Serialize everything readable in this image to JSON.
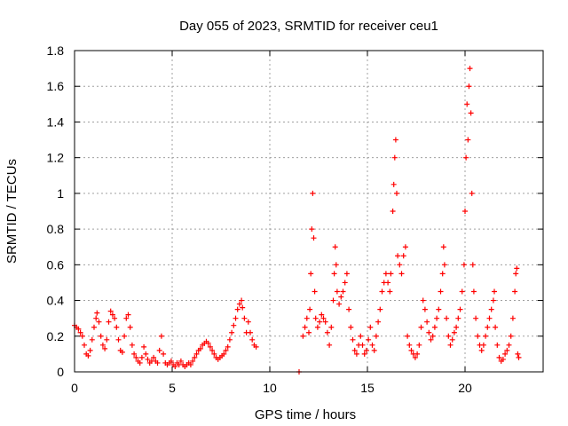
{
  "chart_data": {
    "type": "scatter",
    "title": "Day 055 of 2023, SRMTID for receiver ceu1",
    "xlabel": "GPS time / hours",
    "ylabel": "SRMTID / TECUs",
    "xlim": [
      0,
      24
    ],
    "ylim": [
      0,
      1.8
    ],
    "xticks": [
      0,
      5,
      10,
      15,
      20
    ],
    "xtick_labels": [
      "0",
      "5",
      "10",
      "15",
      "20"
    ],
    "yticks": [
      0,
      0.2,
      0.4,
      0.6,
      0.8,
      1.0,
      1.2,
      1.4,
      1.6,
      1.8
    ],
    "ytick_labels": [
      "0",
      "0.2",
      "0.4",
      "0.6",
      "0.8",
      "1",
      "1.2",
      "1.4",
      "1.6",
      "1.8"
    ],
    "grid": true,
    "marker": "+",
    "color": "#ff0000",
    "series": [
      {
        "name": "SRMTID",
        "points": [
          [
            0.0,
            0.26
          ],
          [
            0.1,
            0.25
          ],
          [
            0.2,
            0.24
          ],
          [
            0.3,
            0.22
          ],
          [
            0.4,
            0.2
          ],
          [
            0.5,
            0.15
          ],
          [
            0.6,
            0.1
          ],
          [
            0.7,
            0.09
          ],
          [
            0.8,
            0.12
          ],
          [
            0.9,
            0.18
          ],
          [
            1.0,
            0.25
          ],
          [
            1.1,
            0.3
          ],
          [
            1.15,
            0.33
          ],
          [
            1.25,
            0.28
          ],
          [
            1.35,
            0.2
          ],
          [
            1.45,
            0.15
          ],
          [
            1.55,
            0.13
          ],
          [
            1.65,
            0.18
          ],
          [
            1.75,
            0.28
          ],
          [
            1.85,
            0.34
          ],
          [
            1.95,
            0.32
          ],
          [
            2.05,
            0.3
          ],
          [
            2.15,
            0.25
          ],
          [
            2.25,
            0.18
          ],
          [
            2.35,
            0.12
          ],
          [
            2.45,
            0.11
          ],
          [
            2.55,
            0.2
          ],
          [
            2.65,
            0.3
          ],
          [
            2.75,
            0.32
          ],
          [
            2.85,
            0.25
          ],
          [
            2.95,
            0.15
          ],
          [
            3.05,
            0.1
          ],
          [
            3.15,
            0.08
          ],
          [
            3.25,
            0.06
          ],
          [
            3.35,
            0.05
          ],
          [
            3.45,
            0.08
          ],
          [
            3.55,
            0.14
          ],
          [
            3.65,
            0.1
          ],
          [
            3.75,
            0.07
          ],
          [
            3.85,
            0.05
          ],
          [
            3.95,
            0.06
          ],
          [
            4.05,
            0.08
          ],
          [
            4.15,
            0.06
          ],
          [
            4.25,
            0.05
          ],
          [
            4.35,
            0.12
          ],
          [
            4.45,
            0.2
          ],
          [
            4.55,
            0.1
          ],
          [
            4.65,
            0.05
          ],
          [
            4.75,
            0.04
          ],
          [
            4.85,
            0.05
          ],
          [
            4.95,
            0.06
          ],
          [
            5.05,
            0.04
          ],
          [
            5.15,
            0.03
          ],
          [
            5.25,
            0.05
          ],
          [
            5.35,
            0.04
          ],
          [
            5.45,
            0.06
          ],
          [
            5.55,
            0.04
          ],
          [
            5.65,
            0.03
          ],
          [
            5.75,
            0.04
          ],
          [
            5.85,
            0.05
          ],
          [
            5.95,
            0.04
          ],
          [
            6.05,
            0.06
          ],
          [
            6.15,
            0.08
          ],
          [
            6.25,
            0.1
          ],
          [
            6.35,
            0.12
          ],
          [
            6.45,
            0.13
          ],
          [
            6.55,
            0.15
          ],
          [
            6.65,
            0.16
          ],
          [
            6.75,
            0.17
          ],
          [
            6.85,
            0.16
          ],
          [
            6.95,
            0.14
          ],
          [
            7.05,
            0.12
          ],
          [
            7.15,
            0.1
          ],
          [
            7.25,
            0.08
          ],
          [
            7.35,
            0.07
          ],
          [
            7.45,
            0.08
          ],
          [
            7.55,
            0.09
          ],
          [
            7.65,
            0.1
          ],
          [
            7.75,
            0.12
          ],
          [
            7.85,
            0.14
          ],
          [
            7.95,
            0.18
          ],
          [
            8.05,
            0.22
          ],
          [
            8.15,
            0.26
          ],
          [
            8.25,
            0.3
          ],
          [
            8.35,
            0.35
          ],
          [
            8.45,
            0.38
          ],
          [
            8.55,
            0.4
          ],
          [
            8.6,
            0.36
          ],
          [
            8.7,
            0.3
          ],
          [
            8.8,
            0.22
          ],
          [
            8.9,
            0.28
          ],
          [
            9.0,
            0.22
          ],
          [
            9.1,
            0.18
          ],
          [
            9.2,
            0.15
          ],
          [
            9.3,
            0.14
          ],
          [
            11.5,
            0.0
          ],
          [
            11.7,
            0.2
          ],
          [
            11.8,
            0.25
          ],
          [
            11.9,
            0.3
          ],
          [
            12.0,
            0.22
          ],
          [
            12.05,
            0.35
          ],
          [
            12.1,
            0.55
          ],
          [
            12.15,
            0.8
          ],
          [
            12.2,
            1.0
          ],
          [
            12.25,
            0.75
          ],
          [
            12.3,
            0.45
          ],
          [
            12.35,
            0.3
          ],
          [
            12.45,
            0.25
          ],
          [
            12.55,
            0.28
          ],
          [
            12.65,
            0.32
          ],
          [
            12.75,
            0.3
          ],
          [
            12.85,
            0.28
          ],
          [
            12.95,
            0.22
          ],
          [
            13.05,
            0.15
          ],
          [
            13.15,
            0.25
          ],
          [
            13.25,
            0.4
          ],
          [
            13.3,
            0.55
          ],
          [
            13.35,
            0.7
          ],
          [
            13.4,
            0.6
          ],
          [
            13.45,
            0.45
          ],
          [
            13.55,
            0.38
          ],
          [
            13.65,
            0.42
          ],
          [
            13.75,
            0.45
          ],
          [
            13.85,
            0.5
          ],
          [
            13.95,
            0.55
          ],
          [
            14.05,
            0.35
          ],
          [
            14.15,
            0.25
          ],
          [
            14.25,
            0.18
          ],
          [
            14.35,
            0.12
          ],
          [
            14.45,
            0.1
          ],
          [
            14.55,
            0.15
          ],
          [
            14.65,
            0.2
          ],
          [
            14.75,
            0.15
          ],
          [
            14.85,
            0.1
          ],
          [
            14.95,
            0.12
          ],
          [
            15.05,
            0.18
          ],
          [
            15.15,
            0.25
          ],
          [
            15.25,
            0.15
          ],
          [
            15.35,
            0.12
          ],
          [
            15.45,
            0.2
          ],
          [
            15.55,
            0.28
          ],
          [
            15.65,
            0.35
          ],
          [
            15.75,
            0.45
          ],
          [
            15.85,
            0.5
          ],
          [
            15.95,
            0.55
          ],
          [
            16.05,
            0.5
          ],
          [
            16.15,
            0.45
          ],
          [
            16.2,
            0.55
          ],
          [
            16.3,
            0.9
          ],
          [
            16.35,
            1.05
          ],
          [
            16.4,
            1.2
          ],
          [
            16.45,
            1.3
          ],
          [
            16.5,
            1.0
          ],
          [
            16.55,
            0.65
          ],
          [
            16.65,
            0.6
          ],
          [
            16.75,
            0.55
          ],
          [
            16.85,
            0.65
          ],
          [
            16.95,
            0.7
          ],
          [
            17.05,
            0.2
          ],
          [
            17.15,
            0.15
          ],
          [
            17.25,
            0.12
          ],
          [
            17.35,
            0.1
          ],
          [
            17.45,
            0.08
          ],
          [
            17.55,
            0.1
          ],
          [
            17.65,
            0.15
          ],
          [
            17.75,
            0.25
          ],
          [
            17.85,
            0.4
          ],
          [
            17.95,
            0.35
          ],
          [
            18.05,
            0.28
          ],
          [
            18.15,
            0.22
          ],
          [
            18.25,
            0.18
          ],
          [
            18.35,
            0.2
          ],
          [
            18.45,
            0.25
          ],
          [
            18.55,
            0.3
          ],
          [
            18.65,
            0.35
          ],
          [
            18.75,
            0.45
          ],
          [
            18.85,
            0.55
          ],
          [
            18.9,
            0.7
          ],
          [
            18.95,
            0.6
          ],
          [
            19.05,
            0.3
          ],
          [
            19.15,
            0.2
          ],
          [
            19.25,
            0.15
          ],
          [
            19.35,
            0.18
          ],
          [
            19.45,
            0.22
          ],
          [
            19.55,
            0.25
          ],
          [
            19.65,
            0.3
          ],
          [
            19.75,
            0.35
          ],
          [
            19.85,
            0.45
          ],
          [
            19.95,
            0.6
          ],
          [
            20.0,
            0.9
          ],
          [
            20.05,
            1.2
          ],
          [
            20.1,
            1.5
          ],
          [
            20.15,
            1.3
          ],
          [
            20.2,
            1.6
          ],
          [
            20.25,
            1.7
          ],
          [
            20.3,
            1.45
          ],
          [
            20.35,
            1.0
          ],
          [
            20.4,
            0.6
          ],
          [
            20.45,
            0.45
          ],
          [
            20.55,
            0.3
          ],
          [
            20.65,
            0.2
          ],
          [
            20.75,
            0.15
          ],
          [
            20.85,
            0.12
          ],
          [
            20.95,
            0.15
          ],
          [
            21.05,
            0.2
          ],
          [
            21.15,
            0.25
          ],
          [
            21.25,
            0.3
          ],
          [
            21.35,
            0.35
          ],
          [
            21.45,
            0.4
          ],
          [
            21.5,
            0.45
          ],
          [
            21.55,
            0.25
          ],
          [
            21.65,
            0.15
          ],
          [
            21.75,
            0.08
          ],
          [
            21.85,
            0.06
          ],
          [
            21.95,
            0.07
          ],
          [
            22.05,
            0.1
          ],
          [
            22.15,
            0.12
          ],
          [
            22.25,
            0.15
          ],
          [
            22.35,
            0.2
          ],
          [
            22.45,
            0.3
          ],
          [
            22.55,
            0.45
          ],
          [
            22.6,
            0.55
          ],
          [
            22.65,
            0.58
          ],
          [
            22.7,
            0.1
          ],
          [
            22.75,
            0.08
          ]
        ]
      }
    ]
  }
}
